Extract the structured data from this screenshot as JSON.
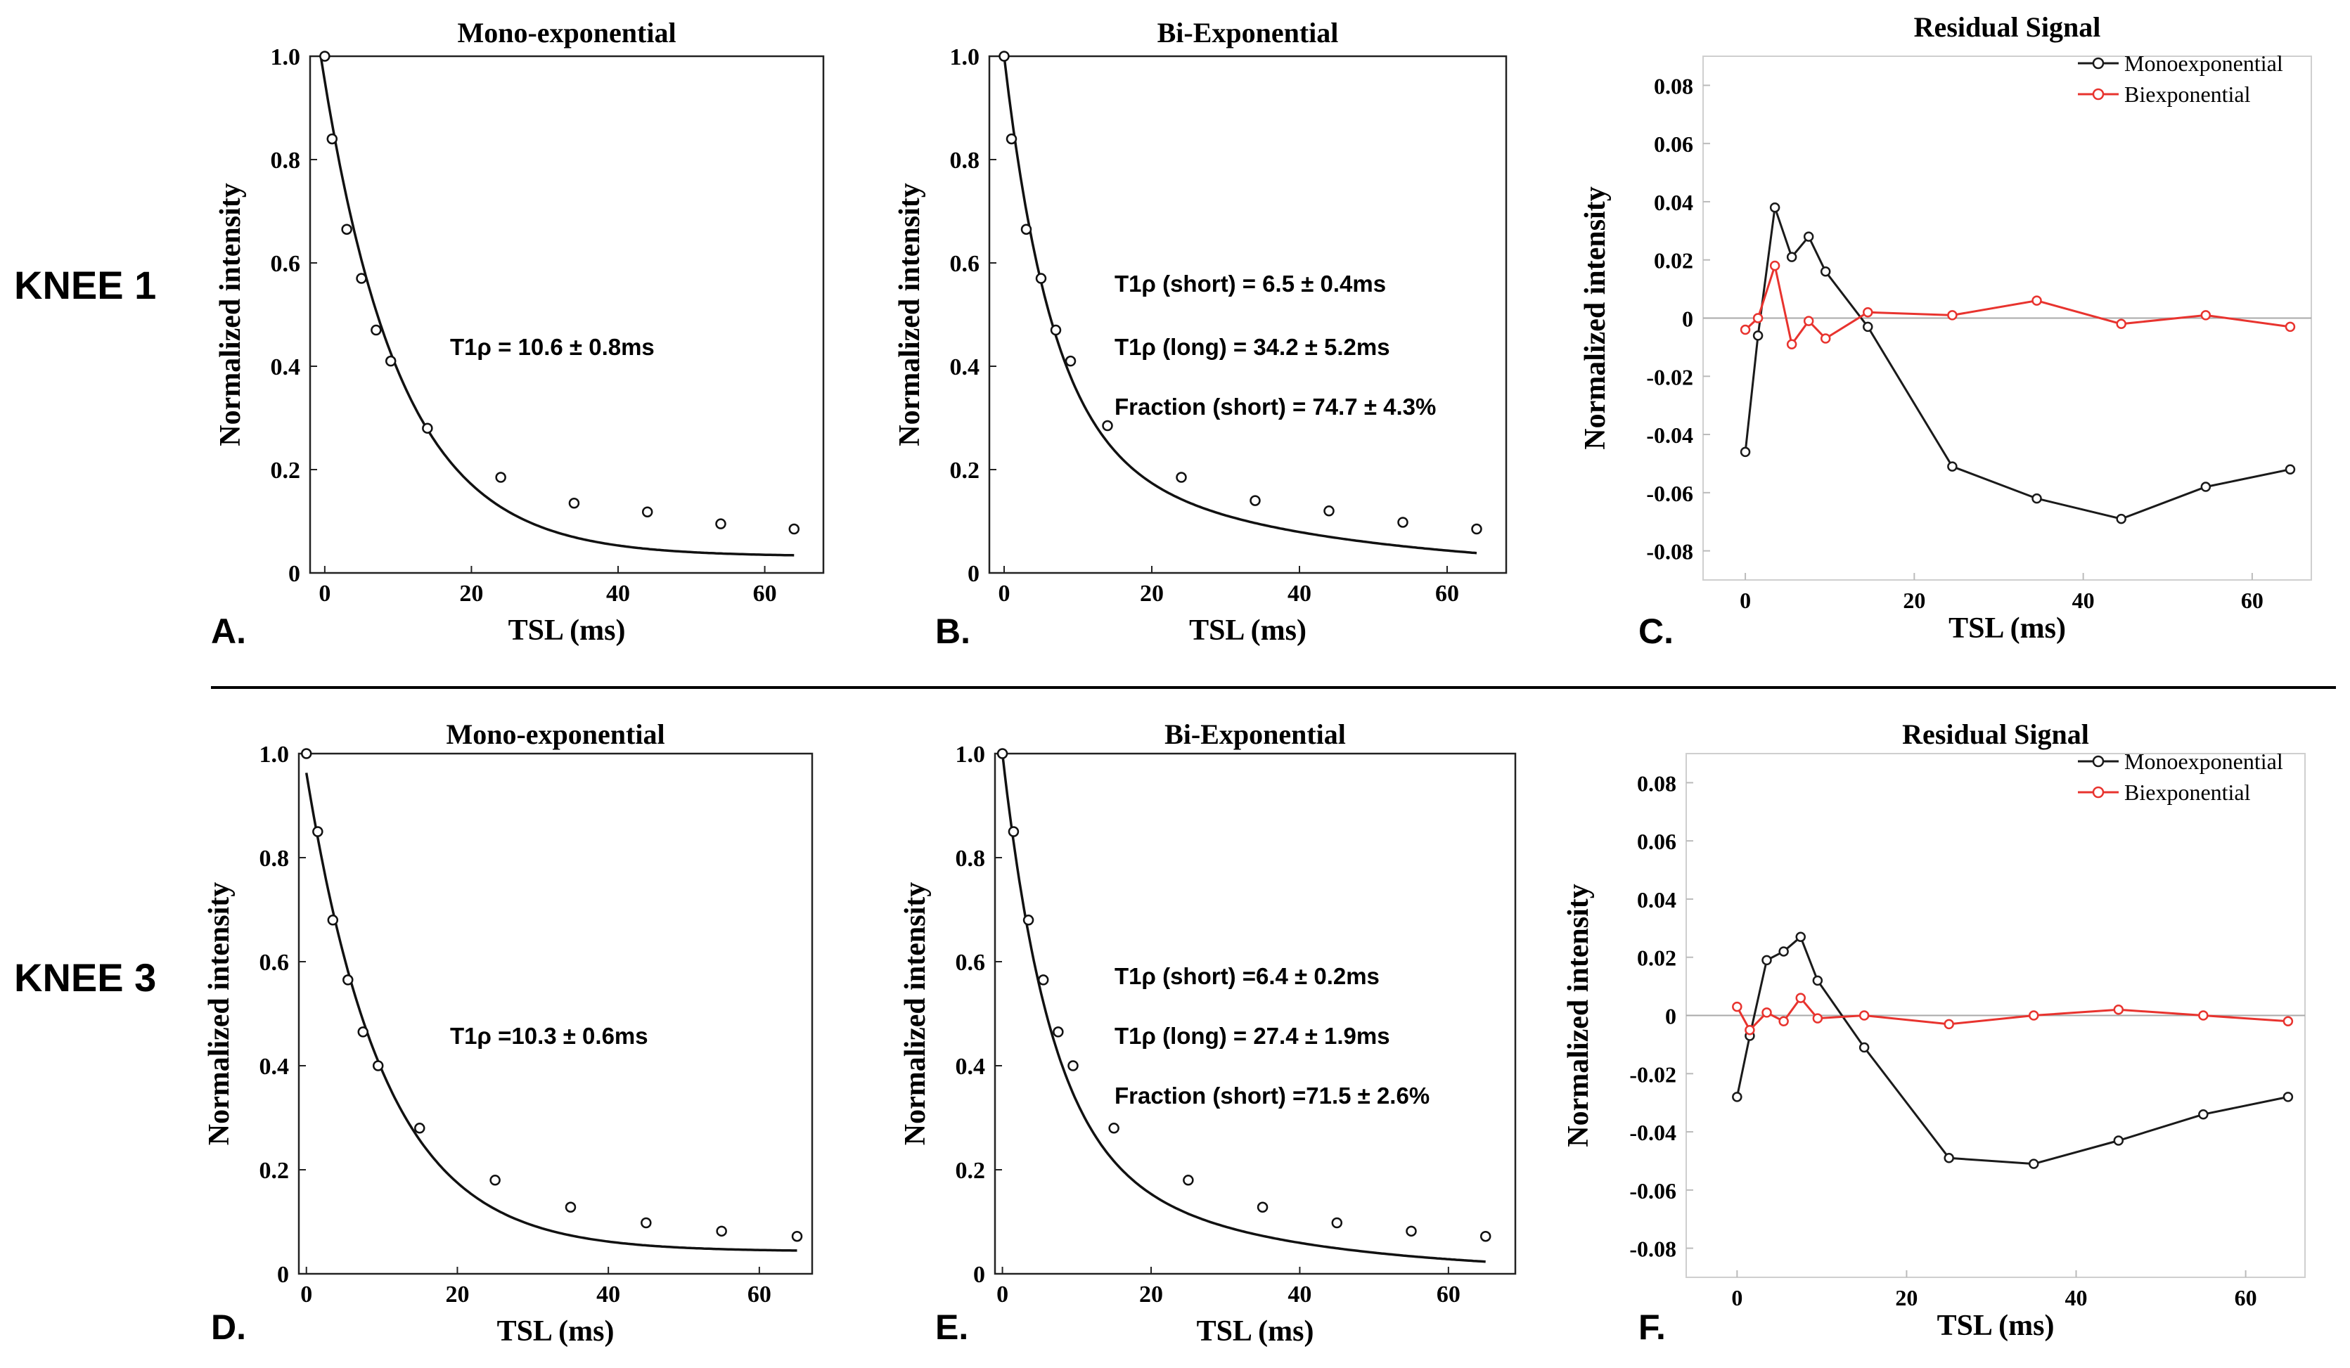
{
  "rows": [
    {
      "label": "KNEE 1"
    },
    {
      "label": "KNEE 3"
    }
  ],
  "chart_data": [
    {
      "id": "A",
      "panel_letter": "A.",
      "type": "scatter",
      "title": "Mono-exponential",
      "xlabel": "TSL (ms)",
      "ylabel": "Normalized intensity",
      "xlim": [
        -2,
        68
      ],
      "ylim": [
        0,
        1.0
      ],
      "xticks": [
        0,
        20,
        40,
        60
      ],
      "yticks": [
        0,
        0.2,
        0.4,
        0.6,
        0.8,
        1.0
      ],
      "ytick_labels": [
        "0",
        "0.2",
        "0.4",
        "0.6",
        "0.8",
        "1.0"
      ],
      "points": {
        "x": [
          0,
          1,
          3,
          5,
          7,
          9,
          14,
          24,
          34,
          44,
          54,
          64
        ],
        "y": [
          1.0,
          0.84,
          0.665,
          0.57,
          0.47,
          0.41,
          0.28,
          0.185,
          0.135,
          0.118,
          0.095,
          0.085
        ]
      },
      "fit": {
        "kind": "mono",
        "A": 0.92,
        "T": 10.6,
        "C": 0.032,
        "x_range": [
          -0.5,
          64
        ]
      },
      "annotations": [
        "T1ρ = 10.6 ± 0.8ms"
      ]
    },
    {
      "id": "B",
      "panel_letter": "B.",
      "type": "scatter",
      "title": "Bi-Exponential",
      "xlabel": "TSL (ms)",
      "ylabel": "Normalized intensity",
      "xlim": [
        -2,
        68
      ],
      "ylim": [
        0,
        1.0
      ],
      "xticks": [
        0,
        20,
        40,
        60
      ],
      "yticks": [
        0,
        0.2,
        0.4,
        0.6,
        0.8,
        1.0
      ],
      "ytick_labels": [
        "0",
        "0.2",
        "0.4",
        "0.6",
        "0.8",
        "1.0"
      ],
      "points": {
        "x": [
          0,
          1,
          3,
          5,
          7,
          9,
          14,
          24,
          34,
          44,
          54,
          64
        ],
        "y": [
          1.0,
          0.84,
          0.665,
          0.57,
          0.47,
          0.41,
          0.285,
          0.185,
          0.14,
          0.12,
          0.098,
          0.085
        ]
      },
      "fit": {
        "kind": "bi",
        "A1": 0.75,
        "T1": 6.5,
        "A2": 0.25,
        "T2": 34.2,
        "x_range": [
          0,
          64
        ]
      },
      "annotations": [
        "T1ρ (short) = 6.5 ± 0.4ms",
        "T1ρ (long) = 34.2 ± 5.2ms",
        "Fraction (short) = 74.7 ± 4.3%"
      ]
    },
    {
      "id": "C",
      "panel_letter": "C.",
      "type": "line",
      "title": "Residual Signal",
      "xlabel": "TSL (ms)",
      "ylabel": "Normalized intensity",
      "xlim": [
        -5,
        67
      ],
      "ylim": [
        -0.09,
        0.09
      ],
      "xticks": [
        0,
        20,
        40,
        60
      ],
      "yticks": [
        -0.08,
        -0.06,
        -0.04,
        -0.02,
        0,
        0.02,
        0.04,
        0.06,
        0.08
      ],
      "ytick_labels": [
        "-0.08",
        "-0.06",
        "-0.04",
        "-0.02",
        "0",
        "0.02",
        "0.04",
        "0.06",
        "0.08"
      ],
      "legend_position": "top-right",
      "series": [
        {
          "name": "Monoexponential",
          "color": "#1a1a1a",
          "x": [
            0,
            1.5,
            3.5,
            5.5,
            7.5,
            9.5,
            14.5,
            24.5,
            34.5,
            44.5,
            54.5,
            64.5
          ],
          "y": [
            -0.046,
            -0.006,
            0.038,
            0.021,
            0.028,
            0.016,
            -0.003,
            -0.051,
            -0.062,
            -0.069,
            -0.058,
            -0.052
          ]
        },
        {
          "name": "Biexponential",
          "color": "#e8332e",
          "x": [
            0,
            1.5,
            3.5,
            5.5,
            7.5,
            9.5,
            14.5,
            24.5,
            34.5,
            44.5,
            54.5,
            64.5
          ],
          "y": [
            -0.004,
            0.0,
            0.018,
            -0.009,
            -0.001,
            -0.007,
            0.002,
            0.001,
            0.006,
            -0.002,
            0.001,
            -0.003
          ]
        }
      ]
    },
    {
      "id": "D",
      "panel_letter": "D.",
      "type": "scatter",
      "title": "Mono-exponential",
      "xlabel": "TSL (ms)",
      "ylabel": "Normalized intensity",
      "xlim": [
        -1,
        67
      ],
      "ylim": [
        0,
        1.0
      ],
      "xticks": [
        0,
        20,
        40,
        60
      ],
      "yticks": [
        0,
        0.2,
        0.4,
        0.6,
        0.8,
        1.0
      ],
      "ytick_labels": [
        "0",
        "0.2",
        "0.4",
        "0.6",
        "0.8",
        "1.0"
      ],
      "points": {
        "x": [
          0,
          1.5,
          3.5,
          5.5,
          7.5,
          9.5,
          15,
          25,
          35,
          45,
          55,
          65
        ],
        "y": [
          1.0,
          0.85,
          0.68,
          0.565,
          0.465,
          0.4,
          0.28,
          0.18,
          0.128,
          0.098,
          0.082,
          0.072
        ]
      },
      "fit": {
        "kind": "mono",
        "A": 0.92,
        "T": 10.3,
        "C": 0.043,
        "x_range": [
          0,
          65
        ]
      },
      "annotations": [
        "T1ρ =10.3 ± 0.6ms"
      ]
    },
    {
      "id": "E",
      "panel_letter": "E.",
      "type": "scatter",
      "title": "Bi-Exponential",
      "xlabel": "TSL (ms)",
      "ylabel": "Normalized intensity",
      "xlim": [
        -1,
        69
      ],
      "ylim": [
        0,
        1.0
      ],
      "xticks": [
        0,
        20,
        40,
        60
      ],
      "yticks": [
        0,
        0.2,
        0.4,
        0.6,
        0.8,
        1.0
      ],
      "ytick_labels": [
        "0",
        "0.2",
        "0.4",
        "0.6",
        "0.8",
        "1.0"
      ],
      "points": {
        "x": [
          0,
          1.5,
          3.5,
          5.5,
          7.5,
          9.5,
          15,
          25,
          35,
          45,
          55,
          65
        ],
        "y": [
          1.0,
          0.85,
          0.68,
          0.565,
          0.465,
          0.4,
          0.28,
          0.18,
          0.128,
          0.098,
          0.082,
          0.072
        ]
      },
      "fit": {
        "kind": "bi",
        "A1": 0.75,
        "T1": 6.4,
        "A2": 0.25,
        "T2": 27.4,
        "x_range": [
          0,
          65
        ]
      },
      "annotations": [
        "T1ρ (short) =6.4 ± 0.2ms",
        "T1ρ (long) = 27.4 ± 1.9ms",
        "Fraction (short) =71.5 ± 2.6%"
      ]
    },
    {
      "id": "F",
      "panel_letter": "F.",
      "type": "line",
      "title": "Residual Signal",
      "xlabel": "TSL (ms)",
      "ylabel": "Normalized intensity",
      "xlim": [
        -6,
        67
      ],
      "ylim": [
        -0.09,
        0.09
      ],
      "xticks": [
        0,
        20,
        40,
        60
      ],
      "yticks": [
        -0.08,
        -0.06,
        -0.04,
        -0.02,
        0,
        0.02,
        0.04,
        0.06,
        0.08
      ],
      "ytick_labels": [
        "-0.08",
        "-0.06",
        "-0.04",
        "-0.02",
        "0",
        "0.02",
        "0.04",
        "0.06",
        "0.08"
      ],
      "legend_position": "top-right",
      "series": [
        {
          "name": "Monoexponential",
          "color": "#1a1a1a",
          "x": [
            0,
            1.5,
            3.5,
            5.5,
            7.5,
            9.5,
            15,
            25,
            35,
            45,
            55,
            65
          ],
          "y": [
            -0.028,
            -0.007,
            0.019,
            0.022,
            0.027,
            0.012,
            -0.011,
            -0.049,
            -0.051,
            -0.043,
            -0.034,
            -0.028
          ]
        },
        {
          "name": "Biexponential",
          "color": "#e8332e",
          "x": [
            0,
            1.5,
            3.5,
            5.5,
            7.5,
            9.5,
            15,
            25,
            35,
            45,
            55,
            65
          ],
          "y": [
            0.003,
            -0.005,
            0.001,
            -0.002,
            0.006,
            -0.001,
            0.0,
            -0.003,
            0.0,
            0.002,
            0.0,
            -0.002
          ]
        }
      ]
    }
  ]
}
